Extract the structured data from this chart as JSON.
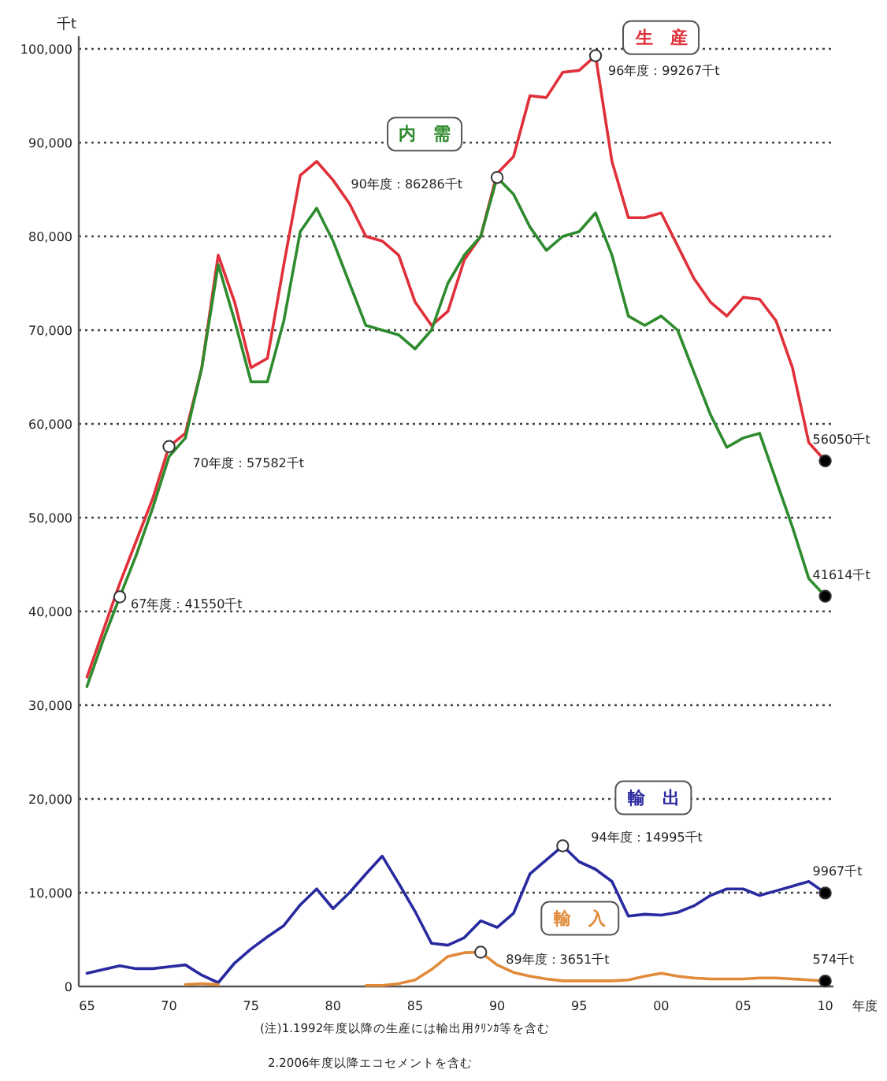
{
  "chart_data": {
    "type": "line",
    "ylabel": "千t",
    "xlabel": "年度",
    "x": [
      1965,
      1966,
      1967,
      1968,
      1969,
      1970,
      1971,
      1972,
      1973,
      1974,
      1975,
      1976,
      1977,
      1978,
      1979,
      1980,
      1981,
      1982,
      1983,
      1984,
      1985,
      1986,
      1987,
      1988,
      1989,
      1990,
      1991,
      1992,
      1993,
      1994,
      1995,
      1996,
      1997,
      1998,
      1999,
      2000,
      2001,
      2002,
      2003,
      2004,
      2005,
      2006,
      2007,
      2008,
      2009,
      2010
    ],
    "xlim": [
      1964.5,
      2010.5
    ],
    "ylim": [
      0,
      100000
    ],
    "xticks": [
      {
        "value": 1965,
        "label": "65"
      },
      {
        "value": 1970,
        "label": "70"
      },
      {
        "value": 1975,
        "label": "75"
      },
      {
        "value": 1980,
        "label": "80"
      },
      {
        "value": 1985,
        "label": "85"
      },
      {
        "value": 1990,
        "label": "90"
      },
      {
        "value": 1995,
        "label": "95"
      },
      {
        "value": 2000,
        "label": "00"
      },
      {
        "value": 2005,
        "label": "05"
      },
      {
        "value": 2010,
        "label": "10"
      }
    ],
    "yticks": [
      0,
      {
        "value": 10000,
        "label": "10,000"
      },
      {
        "value": 20000,
        "label": "20,000"
      },
      {
        "value": 30000,
        "label": "30,000"
      },
      {
        "value": 40000,
        "label": "40,000"
      },
      {
        "value": 50000,
        "label": "50,000"
      },
      {
        "value": 60000,
        "label": "60,000"
      },
      {
        "value": 70000,
        "label": "70,000"
      },
      {
        "value": 80000,
        "label": "80,000"
      },
      {
        "value": 90000,
        "label": "90,000"
      },
      {
        "value": 100000,
        "label": "100,000"
      }
    ],
    "grid": "y",
    "series": [
      {
        "name": "生　産",
        "color": "#e0303a",
        "values": [
          33000,
          38000,
          43000,
          47500,
          52000,
          57582,
          59000,
          66000,
          78000,
          73000,
          66000,
          67000,
          77000,
          86500,
          88000,
          86000,
          83500,
          80000,
          79500,
          78000,
          73000,
          70500,
          72000,
          77500,
          80000,
          86700,
          88500,
          95000,
          94800,
          97500,
          97700,
          99267,
          88000,
          82000,
          82000,
          82500,
          79000,
          75500,
          73000,
          71500,
          73500,
          73300,
          71000,
          66000,
          58000,
          56050
        ]
      },
      {
        "name": "内　需",
        "color": "#2e8b2e",
        "values": [
          32000,
          37000,
          41550,
          46000,
          51000,
          56500,
          58500,
          66000,
          77000,
          71000,
          64500,
          64500,
          71000,
          80500,
          83000,
          79500,
          75000,
          70500,
          70000,
          69500,
          68000,
          70000,
          75000,
          78000,
          80000,
          86286,
          84500,
          81000,
          78500,
          80000,
          80500,
          82500,
          78000,
          71500,
          70500,
          71500,
          70000,
          65500,
          61000,
          57500,
          58500,
          59000,
          54000,
          49000,
          43500,
          41614
        ]
      },
      {
        "name": "輸　出",
        "color": "#2a2aa0",
        "values": [
          1400,
          1800,
          2200,
          1900,
          1900,
          2100,
          2300,
          1200,
          400,
          2500,
          4000,
          5300,
          6500,
          8700,
          10400,
          8300,
          10000,
          12000,
          13900,
          11000,
          8000,
          4600,
          4400,
          5200,
          7000,
          6300,
          7800,
          12000,
          13500,
          14995,
          13300,
          12500,
          11200,
          7500,
          7700,
          7600,
          7900,
          8600,
          9700,
          10400,
          10400,
          9700,
          10200,
          10700,
          11200,
          9967
        ]
      },
      {
        "name": "輸　入",
        "color": "#e08a3a",
        "values": [
          null,
          null,
          null,
          null,
          null,
          null,
          200,
          300,
          200,
          null,
          null,
          null,
          null,
          null,
          null,
          null,
          null,
          100,
          100,
          300,
          700,
          1800,
          3200,
          3600,
          3651,
          2300,
          1500,
          1100,
          800,
          600,
          600,
          600,
          600,
          700,
          1100,
          1400,
          1100,
          900,
          800,
          800,
          800,
          900,
          900,
          800,
          700,
          574
        ]
      }
    ],
    "annotations": [
      {
        "text": "96年度：99267千t",
        "x": 1996,
        "y": 99267
      },
      {
        "text": "90年度：86286千t",
        "x": 1990,
        "y": 86286
      },
      {
        "text": "70年度：57582千t",
        "x": 1970,
        "y": 57582
      },
      {
        "text": "67年度：41550千t",
        "x": 1967,
        "y": 41550
      },
      {
        "text": "56050千t",
        "x": 2010,
        "y": 56050
      },
      {
        "text": "41614千t",
        "x": 2010,
        "y": 41614
      },
      {
        "text": "94年度：14995千t",
        "x": 1994,
        "y": 14995
      },
      {
        "text": "9967千t",
        "x": 2010,
        "y": 9967
      },
      {
        "text": "89年度：3651千t",
        "x": 1989,
        "y": 3651
      },
      {
        "text": "574千t",
        "x": 2010,
        "y": 574
      },
      "(注)1.1992年度以降の生産には輸出用ｸﾘﾝｶ等を含む",
      "2.2006年度以降エコセメントを含む"
    ]
  }
}
